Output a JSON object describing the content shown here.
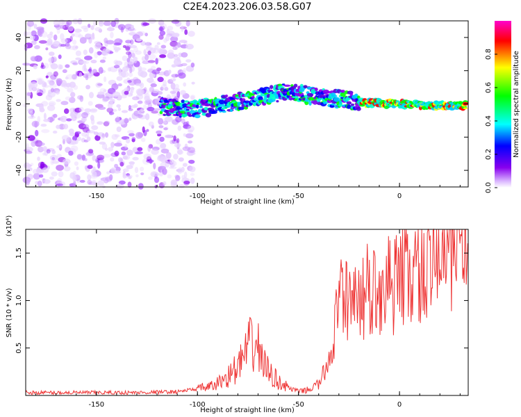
{
  "title": "C2E4.2023.206.03.58.G07",
  "chart_data": [
    {
      "type": "heatmap",
      "xlabel": "Height of straight line (km)",
      "ylabel": "Frequency (Hz)",
      "xlim": [
        -185,
        34
      ],
      "ylim": [
        -50,
        50
      ],
      "xticks": [
        -150,
        -100,
        -50,
        0
      ],
      "yticks": [
        -40,
        -20,
        0,
        20,
        40
      ],
      "colorbar": {
        "label": "Normalized spectral amplitude",
        "range": [
          0,
          1
        ],
        "ticks": [
          "0.0",
          "0.2",
          "0.4",
          "0.6",
          "0.8"
        ],
        "tick_values": [
          0,
          0.2,
          0.4,
          0.6,
          0.8
        ],
        "colormap": [
          "#ffffff",
          "#cc99ff",
          "#8800ee",
          "#0000ff",
          "#00ffff",
          "#00ff00",
          "#ffff00",
          "#ff0000",
          "#ff00cc"
        ]
      },
      "ridge": {
        "description_points": [
          {
            "x": -118,
            "y": -2
          },
          {
            "x": -100,
            "y": -3
          },
          {
            "x": -85,
            "y": 0
          },
          {
            "x": -70,
            "y": 4
          },
          {
            "x": -55,
            "y": 8
          },
          {
            "x": -45,
            "y": 5
          },
          {
            "x": -30,
            "y": 3
          },
          {
            "x": -20,
            "y": 1
          },
          {
            "x": 0,
            "y": 0
          },
          {
            "x": 15,
            "y": -1
          },
          {
            "x": 33,
            "y": -1
          }
        ]
      },
      "noise_region_x": [
        -185,
        -110
      ]
    },
    {
      "type": "line",
      "xlabel": "Height of straight line (km)",
      "ylabel": "SNR (10 * v/v)",
      "yscale_label": "(x10⁴)",
      "xlim": [
        -185,
        34
      ],
      "ylim": [
        0,
        1.75
      ],
      "xticks": [
        -150,
        -100,
        -50,
        0
      ],
      "yticks": [
        0.5,
        1.0,
        1.5
      ],
      "ytick_labels": [
        "0.5",
        "1.0",
        "1.5"
      ],
      "color": "#ee3333",
      "series": [
        {
          "values_x": [
            -185,
            -160,
            -130,
            -110,
            -100,
            -92,
            -85,
            -80,
            -76,
            -73,
            -70,
            -68,
            -65,
            -60,
            -55,
            -50,
            -45,
            -40,
            -36,
            -33,
            -31,
            -29,
            -27,
            -25,
            -23,
            -21,
            -19,
            -17,
            -15,
            -12,
            -9,
            -6,
            -3,
            0,
            4,
            8,
            12,
            16,
            20,
            24,
            28,
            31,
            34
          ],
          "values_y": [
            0.03,
            0.03,
            0.03,
            0.04,
            0.07,
            0.1,
            0.2,
            0.3,
            0.45,
            0.55,
            0.5,
            0.4,
            0.25,
            0.15,
            0.08,
            0.04,
            0.06,
            0.12,
            0.3,
            0.55,
            0.85,
            1.0,
            1.05,
            0.9,
            0.95,
            1.05,
            1.0,
            1.1,
            1.05,
            1.1,
            1.15,
            1.2,
            1.15,
            1.25,
            1.3,
            1.25,
            1.35,
            1.45,
            1.5,
            1.55,
            1.6,
            1.62,
            1.65
          ]
        }
      ]
    }
  ]
}
